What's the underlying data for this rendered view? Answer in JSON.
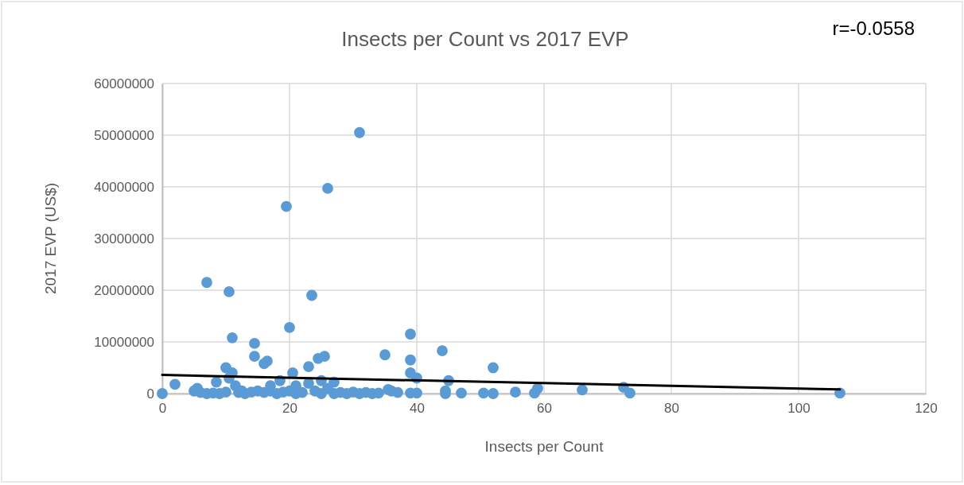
{
  "chart_data": {
    "type": "scatter",
    "title": "Insects per Count vs 2017 EVP",
    "xlabel": "Insects per Count",
    "ylabel": "2017 EVP (US$)",
    "annotations": [
      "r=-0.0558"
    ],
    "xlim": [
      0,
      120
    ],
    "xticks": [
      0,
      20,
      40,
      60,
      80,
      100,
      120
    ],
    "ylim": [
      0,
      60000000
    ],
    "yticks": [
      0,
      10000000,
      20000000,
      30000000,
      40000000,
      50000000,
      60000000
    ],
    "grid": true,
    "marker": "circle",
    "series": [
      {
        "color": "#5b9bd5",
        "x": [
          0,
          2,
          5,
          5.5,
          6,
          7,
          7,
          8,
          8.5,
          9,
          10,
          10,
          10.5,
          10.5,
          11,
          11,
          11.5,
          12,
          12.5,
          13,
          14,
          14.5,
          14.5,
          15,
          16,
          16.5,
          16,
          17,
          17,
          18,
          18.5,
          19,
          19.5,
          20,
          20,
          20.5,
          21,
          21,
          22,
          23,
          23,
          23.5,
          24,
          24.5,
          25,
          25.5,
          25,
          26,
          26,
          27,
          27,
          28,
          29,
          30,
          31,
          31,
          32,
          33,
          34,
          35,
          35.5,
          36,
          37,
          39,
          39,
          39,
          39,
          40,
          40,
          44,
          44.5,
          44.5,
          45,
          47,
          50.5,
          52,
          52,
          55.5,
          58.5,
          59,
          66,
          72.5,
          73.5,
          106.5
        ],
        "values": [
          0,
          1800000,
          500000,
          1000000,
          200000,
          0,
          21500000,
          100000,
          2200000,
          0,
          300000,
          5000000,
          19700000,
          3000000,
          4000000,
          10800000,
          1500000,
          200000,
          500000,
          0,
          300000,
          9700000,
          7200000,
          500000,
          5800000,
          6300000,
          200000,
          1500000,
          500000,
          0,
          2500000,
          300000,
          36200000,
          12800000,
          500000,
          4000000,
          1500000,
          0,
          200000,
          5200000,
          2000000,
          19000000,
          500000,
          6800000,
          2500000,
          7200000,
          0,
          39700000,
          1000000,
          2200000,
          0,
          200000,
          0,
          300000,
          50500000,
          0,
          200000,
          0,
          100000,
          7500000,
          800000,
          500000,
          200000,
          11500000,
          6500000,
          4000000,
          100000,
          3000000,
          100000,
          8300000,
          500000,
          0,
          2500000,
          100000,
          100000,
          0,
          5000000,
          300000,
          100000,
          1000000,
          700000,
          1200000,
          100000,
          100000
        ]
      },
      {
        "type": "line",
        "color": "#000000",
        "marker": "none",
        "x": [
          0,
          106.5
        ],
        "values": [
          3600000,
          800000
        ]
      }
    ]
  }
}
